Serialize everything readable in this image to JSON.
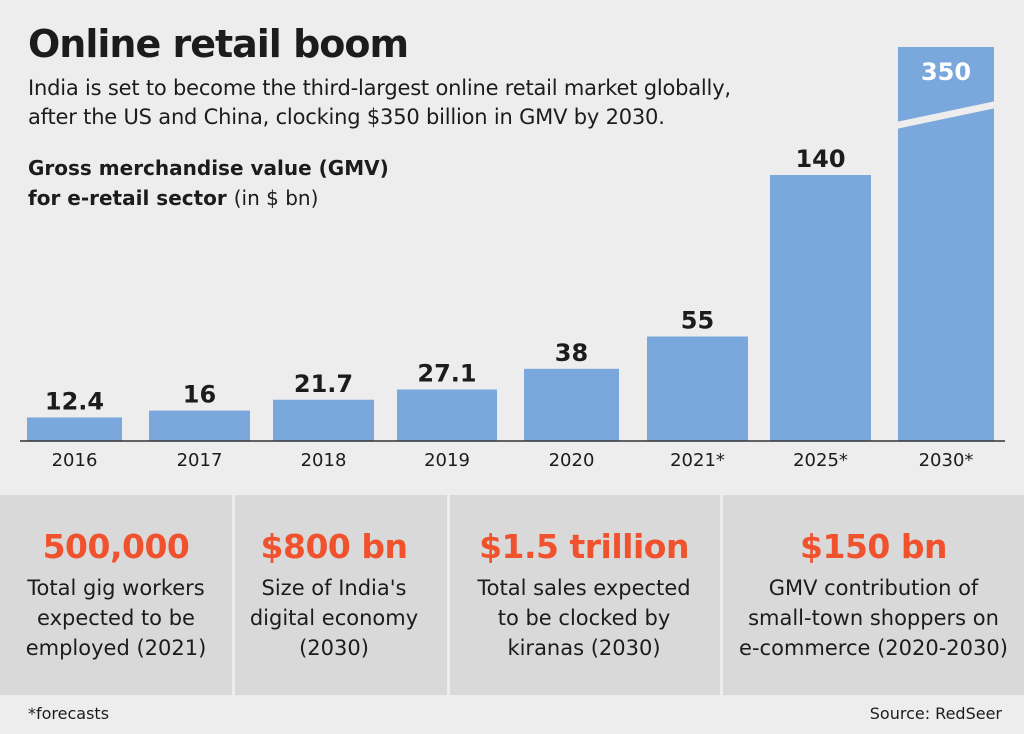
{
  "header": {
    "title": "Online retail boom",
    "subtitle_line1": "India is set to become the third-largest online retail market globally,",
    "subtitle_line2": "after the US and China, clocking $350 billion in GMV by 2030."
  },
  "chart_label": {
    "line1": "Gross merchandise value (GMV)",
    "line2": "for e-retail sector",
    "unit": "(in $ bn)"
  },
  "chart_data": {
    "type": "bar",
    "title": "Gross merchandise value (GMV) for e-retail sector",
    "ylabel": "in $ bn",
    "categories": [
      "2016",
      "2017",
      "2018",
      "2019",
      "2020",
      "2021*",
      "2025*",
      "2030*"
    ],
    "values": [
      12.4,
      16,
      21.7,
      27.1,
      38,
      55,
      140,
      350
    ],
    "value_labels": [
      "12.4",
      "16",
      "21.7",
      "27.1",
      "38",
      "55",
      "140",
      "350"
    ],
    "broken_bar_index": 7,
    "bar_color": "#7aa7dc",
    "label_color": "#1c1c1c"
  },
  "stats": [
    {
      "value": "500,000",
      "desc": [
        "Total gig workers",
        "expected to be",
        "employed (2021)"
      ]
    },
    {
      "value": "$800 bn",
      "desc": [
        "Size of India's",
        "digital economy",
        "(2030)"
      ]
    },
    {
      "value": "$1.5 trillion",
      "desc": [
        "Total sales expected",
        "to be clocked by",
        "kiranas (2030)"
      ]
    },
    {
      "value": "$150 bn",
      "desc": [
        "GMV contribution of",
        "small-town shoppers on",
        "e-commerce (2020-2030)"
      ]
    }
  ],
  "colors": {
    "accent": "#f0522e",
    "bar": "#7aa7dc",
    "background": "#ededed",
    "panel": "#d9d9d9"
  },
  "footer": {
    "footnote": "*forecasts",
    "source": "Source: RedSeer"
  }
}
